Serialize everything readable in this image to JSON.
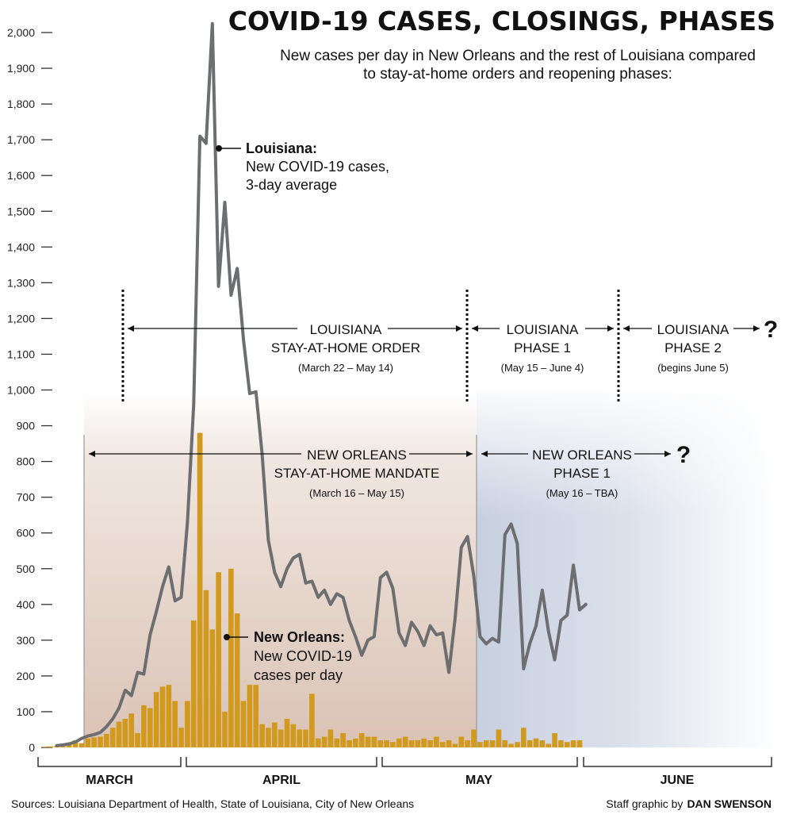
{
  "header": {
    "title": "COVID-19 CASES, CLOSINGS, PHASES",
    "subtitle_line1": "New cases per day in New Orleans and the rest of Louisiana compared",
    "subtitle_line2": "to stay-at-home orders and reopening phases:"
  },
  "annotations": {
    "louisiana_series": {
      "title": "Louisiana:",
      "line1": "New COVID-19 cases,",
      "line2": "3-day average"
    },
    "neworleans_series": {
      "title": "New Orleans:",
      "line1": "New COVID-19",
      "line2": "cases per day"
    },
    "la_stay_home": {
      "line1": "LOUISIANA",
      "line2": "STAY-AT-HOME ORDER",
      "dates": "(March 22 – May 14)"
    },
    "la_phase1": {
      "line1": "LOUISIANA",
      "line2": "PHASE 1",
      "dates": "(May 15 – June 4)"
    },
    "la_phase2": {
      "line1": "LOUISIANA",
      "line2": "PHASE 2",
      "dates": "(begins June 5)",
      "mark": "?"
    },
    "no_stay_home": {
      "line1": "NEW ORLEANS",
      "line2": "STAY-AT-HOME MANDATE",
      "dates": "(March 16 – May 15)"
    },
    "no_phase1": {
      "line1": "NEW ORLEANS",
      "line2": "PHASE 1",
      "dates": "(May 16 – TBA)",
      "mark": "?"
    }
  },
  "months": [
    "MARCH",
    "APRIL",
    "MAY",
    "JUNE"
  ],
  "footer": {
    "sources": "Sources: Louisiana Department of Health, State of Louisiana, City of New Orleans",
    "credit_prefix": "Staff graphic by",
    "credit_name": "DAN SWENSON"
  },
  "colors": {
    "line": "#6d6e70",
    "bars": "#d19a1e",
    "stay_home_shade": "#c49e87",
    "phase1_shade": "#9aa8c6"
  },
  "chart_data": {
    "type": "bar+line",
    "ylim": [
      0,
      2000
    ],
    "y_ticks": [
      0,
      100,
      200,
      300,
      400,
      500,
      600,
      700,
      800,
      900,
      1000,
      1100,
      1200,
      1300,
      1400,
      1500,
      1600,
      1700,
      1800,
      1900,
      2000
    ],
    "y_tick_labels": [
      "0",
      "100",
      "200",
      "300",
      "400",
      "500",
      "600",
      "700",
      "800",
      "900",
      "1,000",
      "1,100",
      "1,200",
      "1,300",
      "1,400",
      "1,500",
      "1,600",
      "1,700",
      "1,800",
      "1,900",
      "2,000"
    ],
    "x_start": "March 2",
    "series": [
      {
        "name": "Louisiana: New COVID-19 cases, 3-day average",
        "type": "line",
        "start_day": 3,
        "values": [
          5,
          7,
          10,
          15,
          25,
          32,
          36,
          42,
          58,
          80,
          110,
          160,
          145,
          210,
          205,
          315,
          380,
          450,
          505,
          410,
          420,
          630,
          960,
          1710,
          1690,
          2025,
          1290,
          1525,
          1265,
          1340,
          1140,
          990,
          995,
          820,
          580,
          490,
          450,
          500,
          530,
          540,
          460,
          465,
          420,
          440,
          400,
          430,
          420,
          355,
          310,
          258,
          300,
          310,
          475,
          490,
          445,
          320,
          285,
          350,
          325,
          285,
          340,
          315,
          320,
          210,
          360,
          560,
          590,
          480,
          310,
          290,
          305,
          295,
          595,
          625,
          570,
          220,
          290,
          340,
          440,
          325,
          245,
          355,
          370,
          510,
          385,
          400
        ]
      },
      {
        "name": "New Orleans: New COVID-19 cases per day",
        "type": "bar",
        "start_day": 1,
        "values": [
          2,
          3,
          4,
          6,
          8,
          20,
          12,
          25,
          28,
          30,
          38,
          55,
          72,
          80,
          95,
          40,
          118,
          110,
          155,
          170,
          175,
          130,
          55,
          130,
          355,
          880,
          440,
          330,
          490,
          100,
          500,
          375,
          130,
          175,
          175,
          65,
          55,
          70,
          50,
          80,
          65,
          50,
          50,
          150,
          25,
          30,
          50,
          25,
          40,
          20,
          25,
          40,
          30,
          30,
          20,
          20,
          15,
          25,
          30,
          20,
          20,
          25,
          20,
          30,
          15,
          20,
          10,
          30,
          20,
          50,
          15,
          20,
          20,
          50,
          20,
          10,
          15,
          55,
          20,
          25,
          20,
          10,
          40,
          20,
          15,
          20,
          20
        ]
      }
    ],
    "periods": [
      {
        "name": "New Orleans stay-at-home mandate",
        "start": "March 16",
        "end": "May 15"
      },
      {
        "name": "New Orleans Phase 1",
        "start": "May 16",
        "end": "TBA"
      },
      {
        "name": "Louisiana stay-at-home order",
        "start": "March 22",
        "end": "May 14"
      },
      {
        "name": "Louisiana Phase 1",
        "start": "May 15",
        "end": "June 4"
      },
      {
        "name": "Louisiana Phase 2",
        "start": "June 5",
        "end": ""
      }
    ]
  }
}
